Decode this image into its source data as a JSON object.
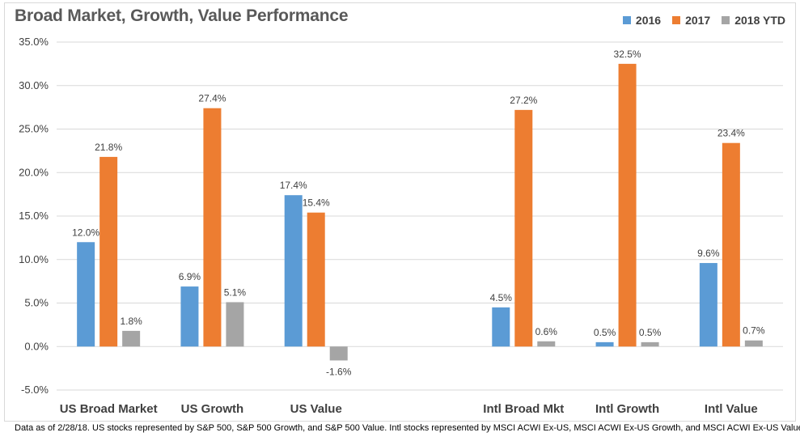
{
  "colors": {
    "series_2016": "#5b9bd5",
    "series_2017": "#ed7d31",
    "series_2018": "#a5a5a5",
    "grid": "#d9d9d9",
    "text": "#404040"
  },
  "footnote": "Data as of 2/28/18.  US stocks represented by S&P 500, S&P 500 Growth, and S&P 500 Value.  Intl stocks represented by MSCI ACWI Ex-US, MSCI ACWI Ex-US Growth, and MSCI ACWI Ex-US Value",
  "chart_data": {
    "type": "bar",
    "title": "Broad Market, Growth, Value Performance",
    "xlabel": "",
    "ylabel": "",
    "categories": [
      "US Broad Market",
      "US Growth",
      "US Value",
      "",
      "Intl Broad Mkt",
      "Intl Growth",
      "Intl Value"
    ],
    "series": [
      {
        "name": "2016",
        "values": [
          12.0,
          6.9,
          17.4,
          null,
          4.5,
          0.5,
          9.6
        ],
        "labels": [
          "12.0%",
          "6.9%",
          "17.4%",
          "",
          "4.5%",
          "0.5%",
          "9.6%"
        ]
      },
      {
        "name": "2017",
        "values": [
          21.8,
          27.4,
          15.4,
          null,
          27.2,
          32.5,
          23.4
        ],
        "labels": [
          "21.8%",
          "27.4%",
          "15.4%",
          "",
          "27.2%",
          "32.5%",
          "23.4%"
        ]
      },
      {
        "name": "2018 YTD",
        "values": [
          1.8,
          5.1,
          -1.6,
          null,
          0.6,
          0.5,
          0.7
        ],
        "labels": [
          "1.8%",
          "5.1%",
          "-1.6%",
          "",
          "0.6%",
          "0.5%",
          "0.7%"
        ]
      }
    ],
    "ylim": [
      -5,
      35
    ],
    "yticks": [
      -5,
      0,
      5,
      10,
      15,
      20,
      25,
      30,
      35
    ],
    "ytick_labels": [
      "-5.0%",
      "0.0%",
      "5.0%",
      "10.0%",
      "15.0%",
      "20.0%",
      "25.0%",
      "30.0%",
      "35.0%"
    ],
    "grid": true,
    "legend_position": "top-right"
  }
}
